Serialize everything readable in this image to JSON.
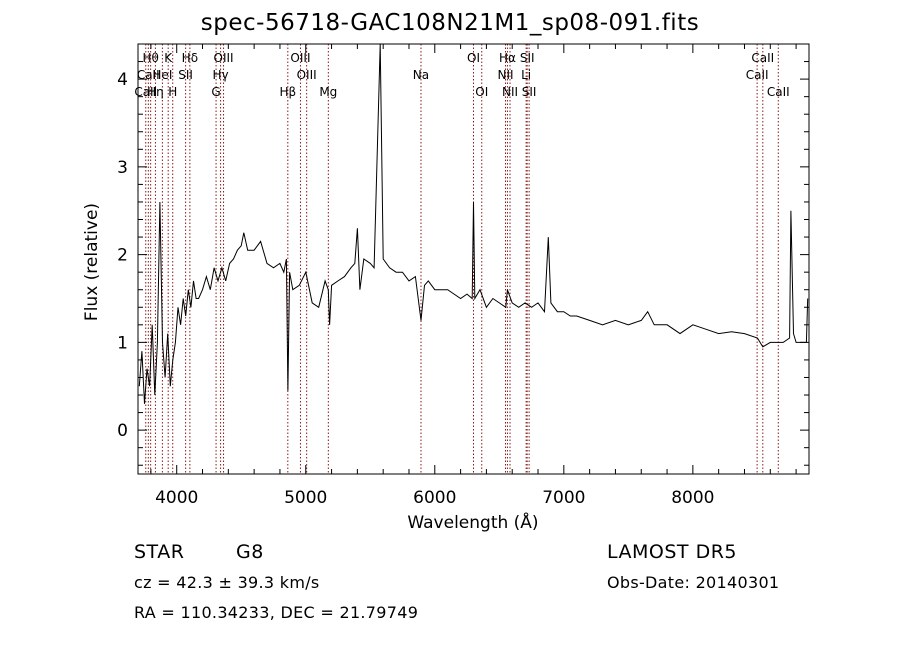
{
  "chart_data": {
    "type": "line",
    "title": "spec-56718-GAC108N21M1_sp08-091.fits",
    "xlabel": "Wavelength (Å)",
    "ylabel": "Flux (relative)",
    "xlim": [
      3700,
      8900
    ],
    "ylim": [
      -0.5,
      4.4
    ],
    "x_ticks": [
      4000,
      5000,
      6000,
      7000,
      8000
    ],
    "x_tick_labels": [
      "4000",
      "5000",
      "6000",
      "7000",
      "8000"
    ],
    "y_ticks": [
      0,
      1,
      2,
      3,
      4
    ],
    "y_tick_labels": [
      "0",
      "1",
      "2",
      "3",
      "4"
    ],
    "grid": false,
    "line_color": "#000000",
    "marker_color": "#8b1a1a",
    "series": [
      {
        "x": [
          3710,
          3730,
          3750,
          3770,
          3790,
          3810,
          3830,
          3850,
          3870,
          3890,
          3910,
          3930,
          3950,
          3970,
          3990,
          4010,
          4030,
          4050,
          4070,
          4090,
          4110,
          4130,
          4150,
          4170,
          4200,
          4230,
          4260,
          4290,
          4320,
          4350,
          4380,
          4410,
          4440,
          4470,
          4500,
          4520,
          4550,
          4600,
          4650,
          4700,
          4750,
          4800,
          4830,
          4850,
          4862,
          4875,
          4900,
          4950,
          5000,
          5050,
          5100,
          5150,
          5175,
          5185,
          5200,
          5250,
          5300,
          5350,
          5380,
          5400,
          5420,
          5450,
          5500,
          5530,
          5577,
          5600,
          5650,
          5700,
          5750,
          5800,
          5850,
          5893,
          5920,
          5950,
          6000,
          6050,
          6100,
          6150,
          6200,
          6250,
          6290,
          6300,
          6310,
          6350,
          6400,
          6450,
          6500,
          6550,
          6563,
          6600,
          6650,
          6700,
          6750,
          6800,
          6850,
          6880,
          6900,
          6950,
          7000,
          7050,
          7100,
          7200,
          7300,
          7400,
          7500,
          7600,
          7650,
          7700,
          7800,
          7900,
          8000,
          8100,
          8200,
          8300,
          8400,
          8500,
          8542,
          8600,
          8662,
          8700,
          8750,
          8760,
          8780,
          8800,
          8850,
          8880,
          8890
        ],
        "y": [
          0.5,
          0.9,
          0.3,
          0.7,
          0.5,
          1.2,
          0.4,
          1.0,
          2.6,
          1.0,
          0.6,
          1.1,
          0.5,
          0.8,
          1.0,
          1.4,
          1.2,
          1.5,
          1.3,
          1.6,
          1.4,
          1.7,
          1.5,
          1.5,
          1.6,
          1.75,
          1.6,
          1.85,
          1.7,
          1.85,
          1.7,
          1.9,
          1.95,
          2.05,
          2.1,
          2.25,
          2.05,
          2.05,
          2.15,
          1.9,
          1.85,
          1.9,
          1.8,
          1.95,
          0.45,
          1.8,
          1.6,
          1.65,
          1.8,
          1.45,
          1.4,
          1.7,
          1.6,
          1.2,
          1.65,
          1.7,
          1.75,
          1.85,
          1.9,
          2.3,
          1.6,
          1.95,
          1.9,
          1.85,
          4.4,
          1.95,
          1.85,
          1.8,
          1.8,
          1.7,
          1.75,
          1.25,
          1.65,
          1.7,
          1.6,
          1.6,
          1.6,
          1.55,
          1.5,
          1.55,
          1.5,
          2.6,
          1.5,
          1.6,
          1.4,
          1.5,
          1.45,
          1.4,
          1.6,
          1.45,
          1.4,
          1.45,
          1.4,
          1.45,
          1.35,
          2.2,
          1.45,
          1.35,
          1.35,
          1.3,
          1.3,
          1.25,
          1.2,
          1.25,
          1.2,
          1.25,
          1.35,
          1.2,
          1.2,
          1.1,
          1.2,
          1.15,
          1.1,
          1.12,
          1.1,
          1.05,
          0.95,
          1.0,
          1.0,
          1.0,
          1.05,
          2.5,
          1.1,
          1.0,
          1.0,
          1.0,
          1.5
        ]
      }
    ],
    "lines": [
      {
        "label": "Hθ",
        "x": 3798,
        "row": 1
      },
      {
        "label": "CaII",
        "x": 3780,
        "row": 2
      },
      {
        "label": "CaII",
        "x": 3760,
        "row": 3
      },
      {
        "label": "Hη",
        "x": 3835,
        "row": 3
      },
      {
        "label": "K",
        "x": 3934,
        "row": 1
      },
      {
        "label": "HeI",
        "x": 3889,
        "row": 2
      },
      {
        "label": "H",
        "x": 3969,
        "row": 3
      },
      {
        "label": "Hδ",
        "x": 4102,
        "row": 1
      },
      {
        "label": "SII",
        "x": 4069,
        "row": 2
      },
      {
        "label": "OIII",
        "x": 4363,
        "row": 1
      },
      {
        "label": "Hγ",
        "x": 4340,
        "row": 2
      },
      {
        "label": "G",
        "x": 4305,
        "row": 3
      },
      {
        "label": "Hβ",
        "x": 4861,
        "row": 3
      },
      {
        "label": "OIII",
        "x": 4959,
        "row": 1
      },
      {
        "label": "OIII",
        "x": 5007,
        "row": 2
      },
      {
        "label": "Mg",
        "x": 5175,
        "row": 3
      },
      {
        "label": "Na",
        "x": 5893,
        "row": 2
      },
      {
        "label": "OI",
        "x": 6300,
        "row": 1
      },
      {
        "label": "OI",
        "x": 6364,
        "row": 3
      },
      {
        "label": "Hα",
        "x": 6563,
        "row": 1
      },
      {
        "label": "NII",
        "x": 6548,
        "row": 2
      },
      {
        "label": "NII",
        "x": 6583,
        "row": 3
      },
      {
        "label": "SII",
        "x": 6716,
        "row": 1
      },
      {
        "label": "Li",
        "x": 6708,
        "row": 2
      },
      {
        "label": "SII",
        "x": 6731,
        "row": 3
      },
      {
        "label": "CaII",
        "x": 8542,
        "row": 1
      },
      {
        "label": "CaII",
        "x": 8498,
        "row": 2
      },
      {
        "label": "CaII",
        "x": 8662,
        "row": 3
      }
    ]
  },
  "info": {
    "object_class": "STAR",
    "subclass": "G8",
    "redshift": "cz = 42.3 ± 39.3 km/s",
    "coords": "RA = 110.34233, DEC =  21.79749",
    "survey": "LAMOST  DR5",
    "obs_date": "Obs-Date: 20140301"
  }
}
